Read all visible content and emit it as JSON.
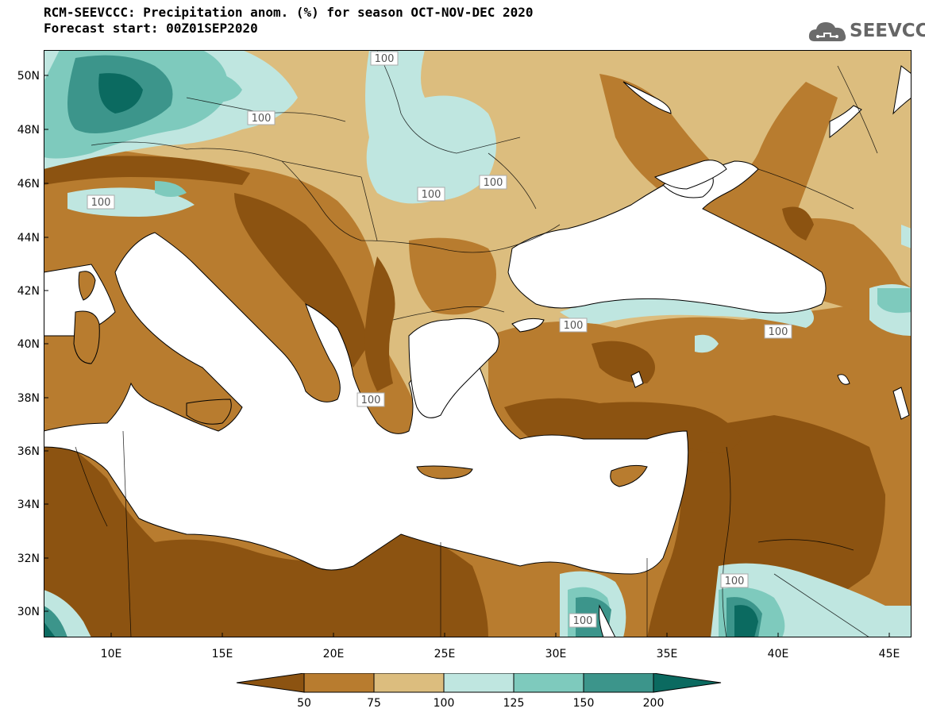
{
  "header": {
    "title_line1": "RCM-SEEVCCC: Precipitation anom. (%) for season OCT-NOV-DEC 2020",
    "title_line2": "Forecast start: 00Z01SEP2020"
  },
  "logo": {
    "text": "SEEVCCC",
    "icon": "cloud-icon"
  },
  "map": {
    "lat_labels": [
      "50N",
      "48N",
      "46N",
      "44N",
      "42N",
      "40N",
      "38N",
      "36N",
      "34N",
      "32N",
      "30N"
    ],
    "lon_labels": [
      "10E",
      "15E",
      "20E",
      "25E",
      "30E",
      "35E",
      "40E",
      "45E"
    ],
    "contour_labels": [
      "100",
      "100",
      "100",
      "100",
      "100",
      "100",
      "100",
      "100",
      "100",
      "100"
    ],
    "colors": {
      "lt50": "#8c5311",
      "50_75": "#b87c2f",
      "75_100": "#dcbd7e",
      "100_125": "#bfe6e0",
      "125_150": "#7ecabd",
      "150_200": "#3c958b",
      "gt200": "#0b6a60",
      "sea": "#ffffff"
    }
  },
  "colorbar": {
    "tick_labels": [
      "50",
      "75",
      "100",
      "125",
      "150",
      "200"
    ],
    "colors": [
      "#8c5311",
      "#b87c2f",
      "#dcbd7e",
      "#bfe6e0",
      "#7ecabd",
      "#3c958b",
      "#0b6a60"
    ]
  }
}
